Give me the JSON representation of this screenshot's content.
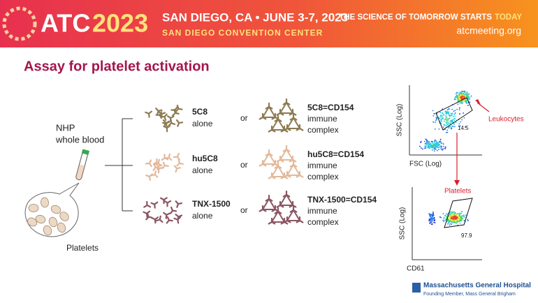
{
  "header": {
    "logo_a": "ATC",
    "logo_b": "2023",
    "location": "SAN DIEGO, CA • JUNE 3-7, 2023",
    "venue": "SAN DIEGO CONVENTION CENTER",
    "tagline": "THE SCIENCE OF TOMORROW STARTS",
    "tagline_highlight": "TODAY",
    "url": "atcmeeting.org"
  },
  "title": "Assay for platelet activation",
  "sample": {
    "label_lines": [
      "NHP",
      "whole blood"
    ],
    "platelets": "Platelets"
  },
  "rows": [
    {
      "antibody_lines": [
        "5C8",
        "alone"
      ],
      "connector": "or",
      "complex_lines": [
        "5C8=CD154",
        "immune",
        "complex"
      ]
    },
    {
      "antibody_lines": [
        "hu5C8",
        "alone"
      ],
      "connector": "or",
      "complex_lines": [
        "hu5C8=CD154",
        "immune",
        "complex"
      ]
    },
    {
      "antibody_lines": [
        "TNX-1500",
        "alone"
      ],
      "connector": "or",
      "complex_lines": [
        "TNX-1500=CD154",
        "immune",
        "complex"
      ]
    }
  ],
  "flow": {
    "top": {
      "y_label": "SSC (Log)",
      "x_label": "FSC (Log)",
      "gate_value": "14.5",
      "callout": "Leukocytes"
    },
    "bottom": {
      "y_label": "SSC (Log)",
      "x_label": "CD61",
      "gate_label": "Platelets",
      "gate_value": "97.9"
    }
  },
  "footer": {
    "org": "Massachusetts General Hospital",
    "sub": "Founding Member, Mass General Brigham"
  }
}
